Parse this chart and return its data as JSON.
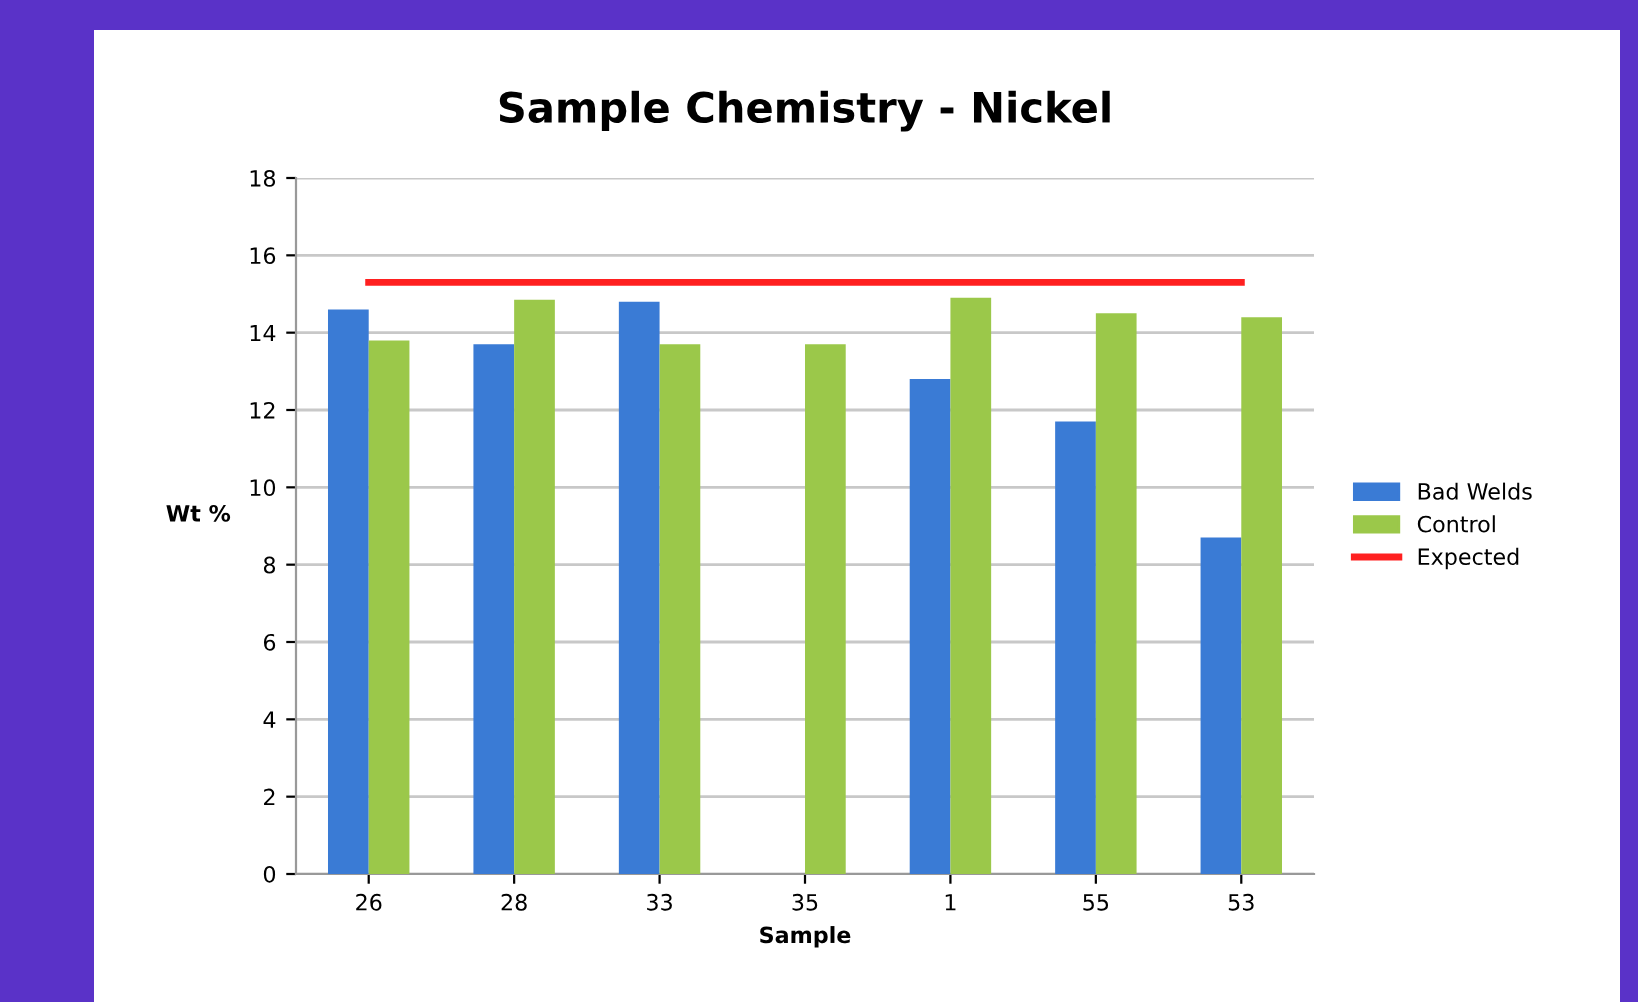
{
  "chart_data": {
    "type": "bar",
    "title": "Sample Chemistry - Nickel",
    "xlabel": "Sample",
    "ylabel": "Wt %",
    "categories": [
      "26",
      "28",
      "33",
      "35",
      "1",
      "55",
      "53"
    ],
    "series": [
      {
        "name": "Bad Welds",
        "color": "#3a7bd5",
        "values": [
          14.6,
          13.7,
          14.8,
          null,
          12.8,
          11.7,
          8.7
        ]
      },
      {
        "name": "Control",
        "color": "#9bc84a",
        "values": [
          13.8,
          14.85,
          13.7,
          13.7,
          14.9,
          14.5,
          14.4
        ]
      },
      {
        "name": "Expected",
        "color": "#ff2020",
        "type": "line",
        "marker": "none",
        "values": [
          15.3,
          15.3,
          15.3,
          15.3,
          15.3,
          15.3,
          15.3
        ]
      }
    ],
    "ylim": [
      0,
      18
    ],
    "yticks": [
      0,
      2,
      4,
      6,
      8,
      10,
      12,
      14,
      16,
      18
    ],
    "grid": "y",
    "legend": "right"
  }
}
